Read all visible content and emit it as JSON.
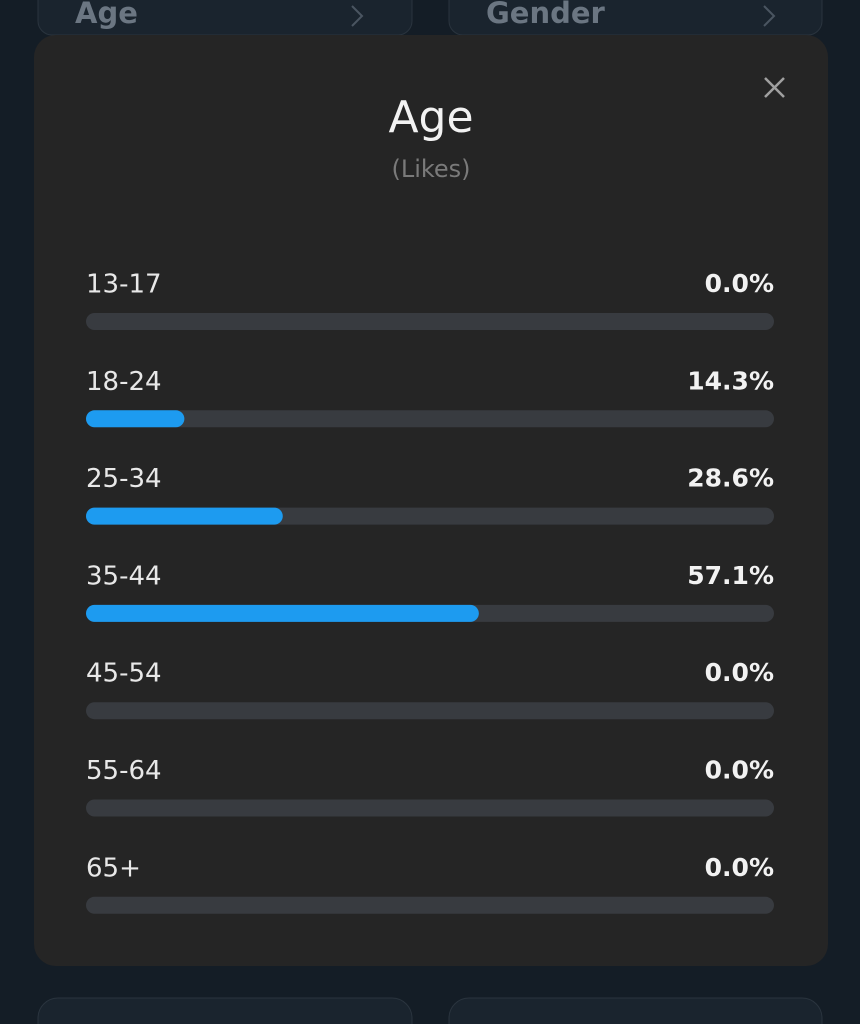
{
  "background": {
    "tabs": [
      "Age",
      "Gender"
    ]
  },
  "chart_data": {
    "type": "bar",
    "orientation": "horizontal",
    "title": "Age",
    "subtitle": "(Likes)",
    "categories": [
      "13-17",
      "18-24",
      "25-34",
      "35-44",
      "45-54",
      "55-64",
      "65+"
    ],
    "values": [
      0,
      14.3,
      28.6,
      57.1,
      0,
      0,
      0
    ],
    "value_labels": [
      "0.0%",
      "14.3%",
      "28.6%",
      "57.1%",
      "0.0%",
      "0.0%",
      "0.0%"
    ],
    "color": "#1d9bf0",
    "xlim": [
      0,
      100
    ]
  }
}
